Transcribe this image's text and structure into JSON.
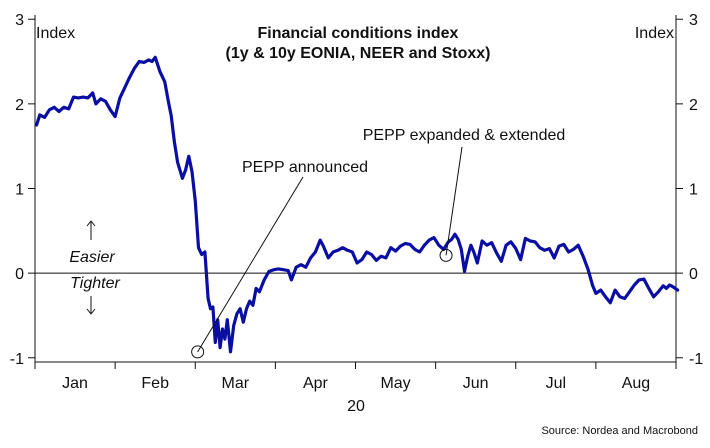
{
  "chart_data": {
    "type": "line",
    "title": "Financial conditions index",
    "subtitle": "(1y & 10y EONIA, NEER and Stoxx)",
    "ylabel_left": "Index",
    "ylabel_right": "Index",
    "year_label": "20",
    "source": "Source: Nordea and Macrobond",
    "ylim": [
      -1.05,
      3.05
    ],
    "yticks": [
      "-1",
      "0",
      "1",
      "2",
      "3"
    ],
    "months": [
      "Jan",
      "Feb",
      "Mar",
      "Apr",
      "May",
      "Jun",
      "Jul",
      "Aug"
    ],
    "zone_labels": {
      "upper": "Easier",
      "lower": "Tighter"
    },
    "annotations": [
      {
        "text": "PEPP announced",
        "x": 2.03,
        "y": -0.93
      },
      {
        "text": "PEPP expanded & extended",
        "x": 5.13,
        "y": 0.21
      }
    ],
    "series": [
      {
        "color": "#0a0ea3",
        "points": [
          [
            0.02,
            1.75
          ],
          [
            0.06,
            1.87
          ],
          [
            0.12,
            1.84
          ],
          [
            0.18,
            1.93
          ],
          [
            0.24,
            1.96
          ],
          [
            0.3,
            1.91
          ],
          [
            0.36,
            1.96
          ],
          [
            0.42,
            1.94
          ],
          [
            0.48,
            2.08
          ],
          [
            0.54,
            2.07
          ],
          [
            0.6,
            2.08
          ],
          [
            0.66,
            2.07
          ],
          [
            0.72,
            2.13
          ],
          [
            0.76,
            2.0
          ],
          [
            0.82,
            2.06
          ],
          [
            0.88,
            2.03
          ],
          [
            0.94,
            1.93
          ],
          [
            1.0,
            1.85
          ],
          [
            1.06,
            2.07
          ],
          [
            1.12,
            2.19
          ],
          [
            1.18,
            2.31
          ],
          [
            1.24,
            2.42
          ],
          [
            1.3,
            2.5
          ],
          [
            1.36,
            2.49
          ],
          [
            1.42,
            2.52
          ],
          [
            1.46,
            2.5
          ],
          [
            1.5,
            2.55
          ],
          [
            1.56,
            2.38
          ],
          [
            1.62,
            2.26
          ],
          [
            1.66,
            2.05
          ],
          [
            1.7,
            1.86
          ],
          [
            1.74,
            1.55
          ],
          [
            1.78,
            1.31
          ],
          [
            1.84,
            1.12
          ],
          [
            1.88,
            1.22
          ],
          [
            1.92,
            1.38
          ],
          [
            1.96,
            1.2
          ],
          [
            2.0,
            0.85
          ],
          [
            2.04,
            0.3
          ],
          [
            2.08,
            0.22
          ],
          [
            2.12,
            0.25
          ],
          [
            2.16,
            -0.3
          ],
          [
            2.19,
            -0.42
          ],
          [
            2.22,
            -0.4
          ],
          [
            2.25,
            -0.82
          ],
          [
            2.28,
            -0.55
          ],
          [
            2.31,
            -0.88
          ],
          [
            2.34,
            -0.66
          ],
          [
            2.37,
            -0.78
          ],
          [
            2.4,
            -0.55
          ],
          [
            2.44,
            -0.93
          ],
          [
            2.48,
            -0.62
          ],
          [
            2.52,
            -0.48
          ],
          [
            2.56,
            -0.42
          ],
          [
            2.6,
            -0.58
          ],
          [
            2.64,
            -0.42
          ],
          [
            2.68,
            -0.33
          ],
          [
            2.72,
            -0.38
          ],
          [
            2.76,
            -0.18
          ],
          [
            2.8,
            -0.22
          ],
          [
            2.86,
            -0.08
          ],
          [
            2.92,
            0.02
          ],
          [
            2.98,
            0.04
          ],
          [
            3.04,
            0.05
          ],
          [
            3.1,
            0.04
          ],
          [
            3.16,
            0.03
          ],
          [
            3.2,
            -0.08
          ],
          [
            3.26,
            0.07
          ],
          [
            3.32,
            0.1
          ],
          [
            3.38,
            0.07
          ],
          [
            3.44,
            0.18
          ],
          [
            3.5,
            0.25
          ],
          [
            3.56,
            0.39
          ],
          [
            3.6,
            0.32
          ],
          [
            3.66,
            0.18
          ],
          [
            3.72,
            0.25
          ],
          [
            3.78,
            0.27
          ],
          [
            3.84,
            0.3
          ],
          [
            3.9,
            0.27
          ],
          [
            3.96,
            0.25
          ],
          [
            4.02,
            0.12
          ],
          [
            4.08,
            0.16
          ],
          [
            4.14,
            0.25
          ],
          [
            4.2,
            0.22
          ],
          [
            4.26,
            0.15
          ],
          [
            4.32,
            0.2
          ],
          [
            4.38,
            0.18
          ],
          [
            4.44,
            0.3
          ],
          [
            4.5,
            0.26
          ],
          [
            4.56,
            0.32
          ],
          [
            4.62,
            0.35
          ],
          [
            4.68,
            0.34
          ],
          [
            4.74,
            0.28
          ],
          [
            4.8,
            0.25
          ],
          [
            4.86,
            0.33
          ],
          [
            4.92,
            0.39
          ],
          [
            4.98,
            0.42
          ],
          [
            5.04,
            0.33
          ],
          [
            5.1,
            0.28
          ],
          [
            5.16,
            0.37
          ],
          [
            5.2,
            0.4
          ],
          [
            5.24,
            0.46
          ],
          [
            5.28,
            0.4
          ],
          [
            5.32,
            0.28
          ],
          [
            5.36,
            0.02
          ],
          [
            5.4,
            0.2
          ],
          [
            5.44,
            0.33
          ],
          [
            5.48,
            0.24
          ],
          [
            5.52,
            0.12
          ],
          [
            5.58,
            0.38
          ],
          [
            5.64,
            0.33
          ],
          [
            5.7,
            0.36
          ],
          [
            5.76,
            0.24
          ],
          [
            5.82,
            0.14
          ],
          [
            5.88,
            0.33
          ],
          [
            5.94,
            0.37
          ],
          [
            6.0,
            0.29
          ],
          [
            6.06,
            0.16
          ],
          [
            6.12,
            0.41
          ],
          [
            6.18,
            0.38
          ],
          [
            6.24,
            0.37
          ],
          [
            6.3,
            0.3
          ],
          [
            6.36,
            0.27
          ],
          [
            6.42,
            0.29
          ],
          [
            6.48,
            0.18
          ],
          [
            6.54,
            0.32
          ],
          [
            6.6,
            0.34
          ],
          [
            6.66,
            0.25
          ],
          [
            6.72,
            0.28
          ],
          [
            6.78,
            0.33
          ],
          [
            6.84,
            0.2
          ],
          [
            6.9,
            0.05
          ],
          [
            6.96,
            -0.15
          ],
          [
            7.0,
            -0.24
          ],
          [
            7.06,
            -0.2
          ],
          [
            7.12,
            -0.28
          ],
          [
            7.18,
            -0.35
          ],
          [
            7.24,
            -0.2
          ],
          [
            7.3,
            -0.28
          ],
          [
            7.36,
            -0.3
          ],
          [
            7.42,
            -0.22
          ],
          [
            7.48,
            -0.14
          ],
          [
            7.54,
            -0.08
          ],
          [
            7.6,
            -0.07
          ],
          [
            7.66,
            -0.18
          ],
          [
            7.72,
            -0.28
          ],
          [
            7.78,
            -0.22
          ],
          [
            7.84,
            -0.15
          ],
          [
            7.88,
            -0.18
          ],
          [
            7.92,
            -0.14
          ],
          [
            7.96,
            -0.16
          ],
          [
            8.02,
            -0.2
          ]
        ]
      }
    ]
  }
}
